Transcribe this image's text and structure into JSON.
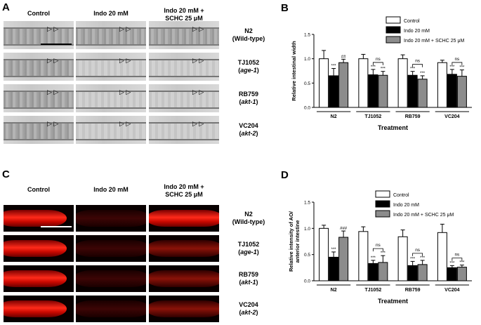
{
  "panels": {
    "A": {
      "letter": "A",
      "columns": [
        "Control",
        "Indo 20 mM",
        "Indo 20 mM +",
        "SCHC 25 μM"
      ],
      "rows": [
        {
          "strain": "N2",
          "genotype": "(Wild-type)"
        },
        {
          "strain": "TJ1052",
          "genotype": "(age-1)"
        },
        {
          "strain": "RB759",
          "genotype": "(akt-1)"
        },
        {
          "strain": "VC204",
          "genotype": "(akt-2)"
        }
      ]
    },
    "C": {
      "letter": "C",
      "columns": [
        "Control",
        "Indo 20 mM",
        "Indo 20 mM +",
        "SCHC 25 μM"
      ],
      "rows": [
        {
          "strain": "N2",
          "genotype": "(Wild-type)"
        },
        {
          "strain": "TJ1052",
          "genotype": "(age-1)"
        },
        {
          "strain": "RB759",
          "genotype": "(akt-1)"
        },
        {
          "strain": "VC204",
          "genotype": "(akt-2)"
        }
      ]
    }
  },
  "chart_data": [
    {
      "panel": "B",
      "type": "bar",
      "ylabel": "Relative intestinal width",
      "xlabel": "Treatment",
      "ylim": [
        0,
        1.5
      ],
      "yticks": [
        "0.0",
        "0.5",
        "1.0",
        "1.5"
      ],
      "categories": [
        "N2",
        "TJ1052",
        "RB759",
        "VC204"
      ],
      "legend": [
        "Control",
        "Indo 20 mM",
        "Indo 20 mM + SCHC 25 μM"
      ],
      "colors": [
        "#ffffff",
        "#000000",
        "#8c8c8c"
      ],
      "series": [
        {
          "name": "Control",
          "values": [
            1.0,
            1.0,
            1.0,
            0.92
          ],
          "errors": [
            0.17,
            0.09,
            0.08,
            0.05
          ]
        },
        {
          "name": "Indo 20 mM",
          "values": [
            0.65,
            0.67,
            0.66,
            0.68
          ],
          "errors": [
            0.15,
            0.11,
            0.08,
            0.1
          ]
        },
        {
          "name": "Indo 20 mM + SCHC 25 μM",
          "values": [
            0.92,
            0.66,
            0.58,
            0.64
          ],
          "errors": [
            0.07,
            0.08,
            0.07,
            0.13
          ]
        }
      ],
      "annotations": [
        [
          "",
          "***",
          "##"
        ],
        [
          "",
          "***",
          "***"
        ],
        [
          "",
          "***",
          "***"
        ],
        [
          "",
          "***",
          "***"
        ]
      ],
      "ns_brackets": [
        false,
        true,
        true,
        true
      ],
      "ns_label": "ns"
    },
    {
      "panel": "D",
      "type": "bar",
      "ylabel": "Relative intensity of AO/ anterior intestine",
      "xlabel": "Treatment",
      "ylim": [
        0,
        1.5
      ],
      "yticks": [
        "0.0",
        "0.5",
        "1.0",
        "1.5"
      ],
      "categories": [
        "N2",
        "TJ1052",
        "RB759",
        "VC204"
      ],
      "legend": [
        "Control",
        "Indo 20 mM",
        "Indo 20 mM + SCHC 25 μM"
      ],
      "colors": [
        "#ffffff",
        "#000000",
        "#8c8c8c"
      ],
      "series": [
        {
          "name": "Control",
          "values": [
            1.0,
            0.94,
            0.84,
            0.92
          ],
          "errors": [
            0.06,
            0.09,
            0.13,
            0.16
          ]
        },
        {
          "name": "Indo 20 mM",
          "values": [
            0.45,
            0.33,
            0.29,
            0.25
          ],
          "errors": [
            0.1,
            0.06,
            0.08,
            0.04
          ]
        },
        {
          "name": "Indo 20 mM + SCHC 25 μM",
          "values": [
            0.83,
            0.35,
            0.31,
            0.26
          ],
          "errors": [
            0.12,
            0.13,
            0.08,
            0.04
          ]
        }
      ],
      "annotations": [
        [
          "",
          "***",
          "###"
        ],
        [
          "",
          "***",
          "***"
        ],
        [
          "",
          "***",
          "***"
        ],
        [
          "",
          "***",
          "***"
        ]
      ],
      "ns_brackets": [
        false,
        true,
        true,
        true
      ],
      "ns_label": "ns"
    }
  ]
}
